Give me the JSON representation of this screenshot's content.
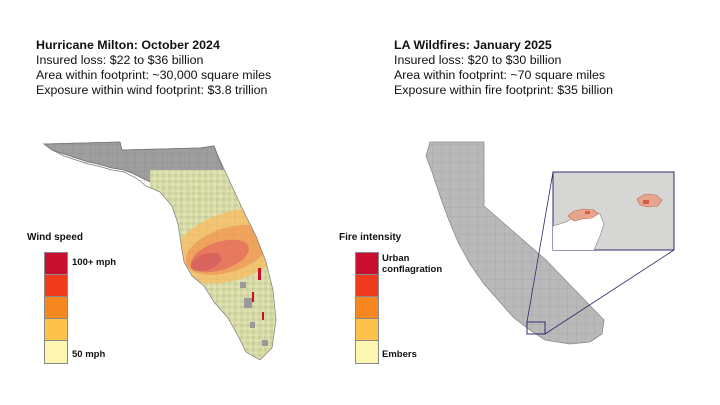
{
  "left_panel": {
    "title": "Hurricane Milton: October 2024",
    "lines": [
      "Insured loss: $22 to $36 billion",
      "Area within footprint: ~30,000 square miles",
      "Exposure within wind footprint: $3.8 trillion"
    ],
    "legend": {
      "title": "Wind speed",
      "top_label": "100+ mph",
      "bottom_label": "50 mph",
      "colors": [
        "#c8102e",
        "#f03a1c",
        "#f6861f",
        "#fcc24c",
        "#fdf6b0"
      ]
    }
  },
  "right_panel": {
    "title": "LA Wildfires: January 2025",
    "lines": [
      "Insured loss: $20 to $30 billion",
      "Area within footprint: ~70 square miles",
      "Exposure within fire footprint: $35 billion"
    ],
    "legend": {
      "title": "Fire intensity",
      "top_label_1": "Urban",
      "top_label_2": "conflagration",
      "bottom_label": "Embers",
      "colors": [
        "#c8102e",
        "#f03a1c",
        "#f6861f",
        "#fcc24c",
        "#fdf6b0"
      ]
    }
  },
  "colors": {
    "land": "#b7b7b7",
    "land_border": "#8c8c8c",
    "inset_bg": "#d4d4d2",
    "callout_line": "#2d2d6b"
  }
}
